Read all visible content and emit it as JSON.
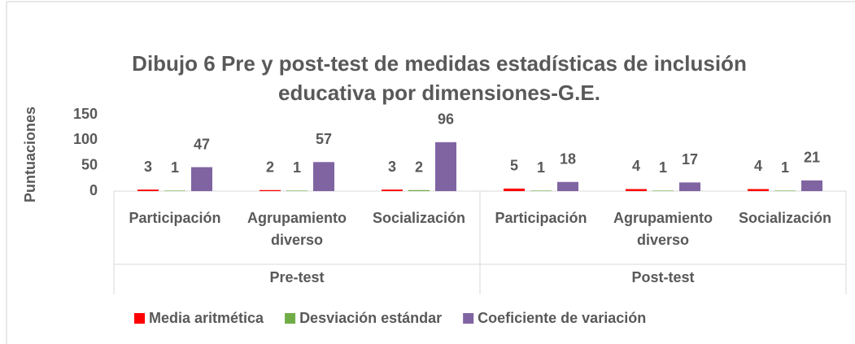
{
  "chart_data": {
    "type": "bar",
    "title": "Dibujo 6  Pre y post-test de medidas estadísticas de inclusión educativa por dimensiones-G.E.",
    "y_label": "Puntuaciones",
    "categories": [
      "Participación",
      "Agrupamiento diverso",
      "Socialización",
      "Participación",
      "Agrupamiento diverso",
      "Socialización"
    ],
    "category_groups": [
      "Pre-test",
      "Post-test"
    ],
    "series": [
      {
        "name": "Media aritmética",
        "color": "#ff0000",
        "values": [
          3,
          2,
          3,
          5,
          4,
          4
        ]
      },
      {
        "name": "Desviación estándar",
        "color": "#70ad47",
        "values": [
          1,
          1,
          2,
          1,
          1,
          1
        ]
      },
      {
        "name": "Coeficiente de variación",
        "color": "#8064a2",
        "values": [
          47,
          57,
          96,
          18,
          17,
          21
        ]
      }
    ],
    "ylim": [
      0,
      150
    ],
    "yticks": [
      0,
      50,
      100,
      150
    ],
    "legend": "bottom"
  }
}
